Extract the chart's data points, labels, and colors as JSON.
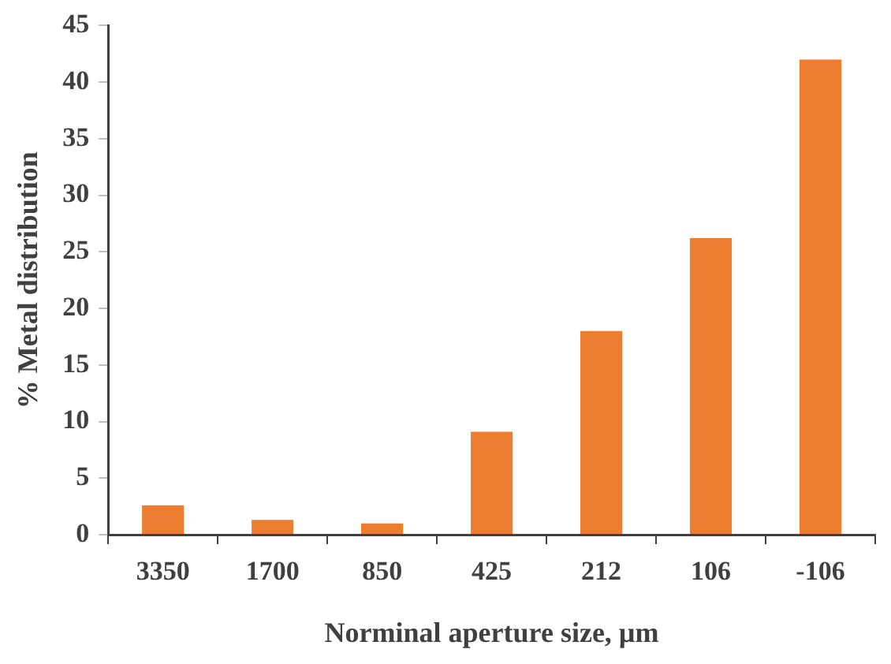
{
  "chart_data": {
    "type": "bar",
    "xlabel": "Norminal aperture size, µm",
    "ylabel": "% Metal distribution",
    "categories": [
      "3350",
      "1700",
      "850",
      "425",
      "212",
      "106",
      "-106"
    ],
    "values": [
      2.6,
      1.3,
      1.0,
      9.1,
      18.0,
      26.2,
      42.0
    ],
    "color": "#ed7d31",
    "ylim": [
      0,
      45
    ],
    "yticks": [
      0,
      5,
      10,
      15,
      20,
      25,
      30,
      35,
      40,
      45
    ],
    "grid": false,
    "legend": false
  }
}
